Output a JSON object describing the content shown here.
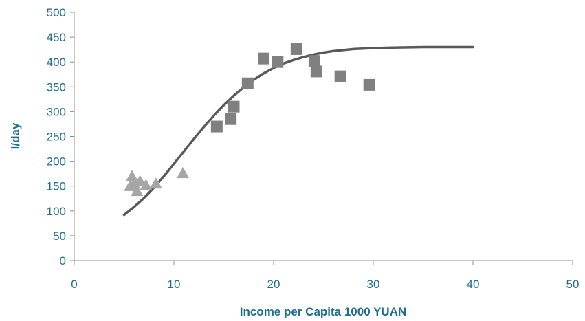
{
  "chart_data": {
    "type": "scatter",
    "xlabel": "Income per Capita 1000 YUAN",
    "ylabel": "l/day",
    "xlim": [
      0,
      50
    ],
    "ylim": [
      0,
      500
    ],
    "x_ticks": [
      0,
      10,
      20,
      30,
      40,
      50
    ],
    "y_ticks": [
      0,
      50,
      100,
      150,
      200,
      250,
      300,
      350,
      400,
      450,
      500
    ],
    "grid": false,
    "legend": "none",
    "series": [
      {
        "marker": "triangle",
        "color": "#a6a6a6",
        "points": [
          [
            5.6,
            150
          ],
          [
            5.8,
            170
          ],
          [
            6.0,
            155
          ],
          [
            6.3,
            140
          ],
          [
            6.6,
            160
          ],
          [
            7.2,
            152
          ],
          [
            8.2,
            155
          ],
          [
            10.9,
            176
          ]
        ]
      },
      {
        "marker": "square",
        "color": "#808080",
        "points": [
          [
            14.3,
            270
          ],
          [
            15.7,
            285
          ],
          [
            16.0,
            310
          ],
          [
            17.4,
            357
          ],
          [
            19.0,
            407
          ],
          [
            20.4,
            400
          ],
          [
            22.3,
            426
          ],
          [
            24.1,
            402
          ],
          [
            24.3,
            381
          ],
          [
            26.7,
            371
          ],
          [
            29.6,
            354
          ]
        ]
      },
      {
        "type": "line",
        "color": "#595959",
        "points": [
          [
            5,
            92
          ],
          [
            6,
            108
          ],
          [
            7,
            126
          ],
          [
            8,
            147
          ],
          [
            9,
            170
          ],
          [
            10,
            195
          ],
          [
            11,
            220
          ],
          [
            12,
            245
          ],
          [
            13,
            269
          ],
          [
            14,
            292
          ],
          [
            15,
            313
          ],
          [
            16,
            332
          ],
          [
            17,
            349
          ],
          [
            18,
            364
          ],
          [
            19,
            377
          ],
          [
            20,
            388
          ],
          [
            21,
            397
          ],
          [
            22,
            404
          ],
          [
            23,
            410
          ],
          [
            24,
            415
          ],
          [
            25,
            419
          ],
          [
            26,
            422
          ],
          [
            28,
            426
          ],
          [
            30,
            428
          ],
          [
            32,
            429
          ],
          [
            35,
            430
          ],
          [
            40,
            430
          ]
        ]
      }
    ]
  }
}
